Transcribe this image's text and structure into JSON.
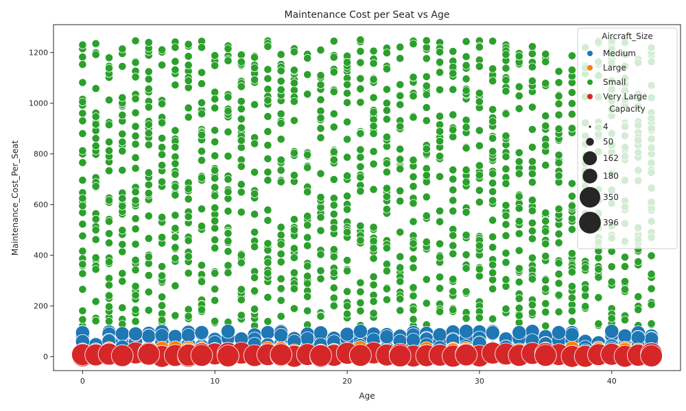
{
  "chart_data": {
    "type": "scatter",
    "title": "Maintenance Cost per Seat vs Age",
    "xlabel": "Age",
    "ylabel": "Maintenance_Cost_Per_Seat",
    "xlim": [
      -2.2,
      45.2
    ],
    "ylim": [
      -55,
      1310
    ],
    "x_ticks": [
      0,
      10,
      20,
      30,
      40
    ],
    "y_ticks": [
      0,
      200,
      400,
      600,
      800,
      1000,
      1200
    ],
    "grid": false,
    "legend_position": "top-right",
    "hue_title": "Aircraft_Size",
    "size_title": "Capacity",
    "series": [
      {
        "name": "Medium",
        "color": "#1f77b4",
        "capacity": 162,
        "age_range": [
          0,
          43
        ],
        "cost_range": [
          0,
          100
        ],
        "points_per_age": 7,
        "representative_points": [
          [
            0,
            95
          ],
          [
            0,
            60
          ],
          [
            0,
            25
          ],
          [
            4,
            90
          ],
          [
            9,
            95
          ],
          [
            12,
            70
          ],
          [
            16,
            60
          ],
          [
            21,
            100
          ],
          [
            25,
            65
          ],
          [
            27,
            35
          ],
          [
            29,
            100
          ],
          [
            33,
            95
          ],
          [
            36,
            95
          ],
          [
            40,
            100
          ],
          [
            42,
            75
          ]
        ]
      },
      {
        "name": "Large",
        "color": "#ff7f0e",
        "capacity": 180,
        "age_range": [
          0,
          43
        ],
        "cost_range": [
          0,
          35
        ],
        "points_per_age": 2,
        "representative_points": [
          [
            0,
            8
          ],
          [
            6,
            15
          ],
          [
            8,
            25
          ],
          [
            11,
            28
          ],
          [
            13,
            10
          ],
          [
            20,
            10
          ],
          [
            23,
            7
          ],
          [
            25,
            10
          ],
          [
            26,
            30
          ],
          [
            28,
            25
          ],
          [
            31,
            8
          ],
          [
            34,
            28
          ],
          [
            40,
            10
          ],
          [
            42,
            25
          ],
          [
            43,
            18
          ]
        ]
      },
      {
        "name": "Small",
        "color": "#2ca02c",
        "capacity": 50,
        "age_range": [
          0,
          43
        ],
        "cost_range": [
          120,
          1250
        ],
        "points_per_age": 32,
        "representative_points": [
          [
            0,
            1230
          ],
          [
            0,
            1005
          ],
          [
            0,
            595
          ],
          [
            1,
            1235
          ],
          [
            5,
            1240
          ],
          [
            11,
            1215
          ],
          [
            19,
            1245
          ],
          [
            21,
            1250
          ],
          [
            31,
            1245
          ],
          [
            38,
            1140
          ],
          [
            40,
            1245
          ],
          [
            42,
            1160
          ],
          [
            43,
            940
          ],
          [
            43,
            610
          ],
          [
            43,
            130
          ]
        ]
      },
      {
        "name": "Very Large",
        "color": "#d62728",
        "capacity": 396,
        "age_range": [
          0,
          43
        ],
        "cost_range": [
          0,
          15
        ],
        "points_per_age": 1,
        "representative_points": [
          [
            0,
            8
          ],
          [
            1,
            7
          ],
          [
            2,
            10
          ],
          [
            3,
            4
          ],
          [
            5,
            10
          ],
          [
            8,
            6
          ],
          [
            9,
            5
          ],
          [
            11,
            3
          ],
          [
            15,
            8
          ],
          [
            18,
            4
          ],
          [
            21,
            5
          ],
          [
            24,
            3
          ],
          [
            29,
            7
          ],
          [
            35,
            5
          ],
          [
            43,
            3
          ]
        ]
      }
    ],
    "size_legend": [
      {
        "label": "4",
        "size": 4
      },
      {
        "label": "50",
        "size": 50
      },
      {
        "label": "162",
        "size": 162
      },
      {
        "label": "180",
        "size": 180
      },
      {
        "label": "350",
        "size": 350
      },
      {
        "label": "396",
        "size": 396
      }
    ]
  }
}
